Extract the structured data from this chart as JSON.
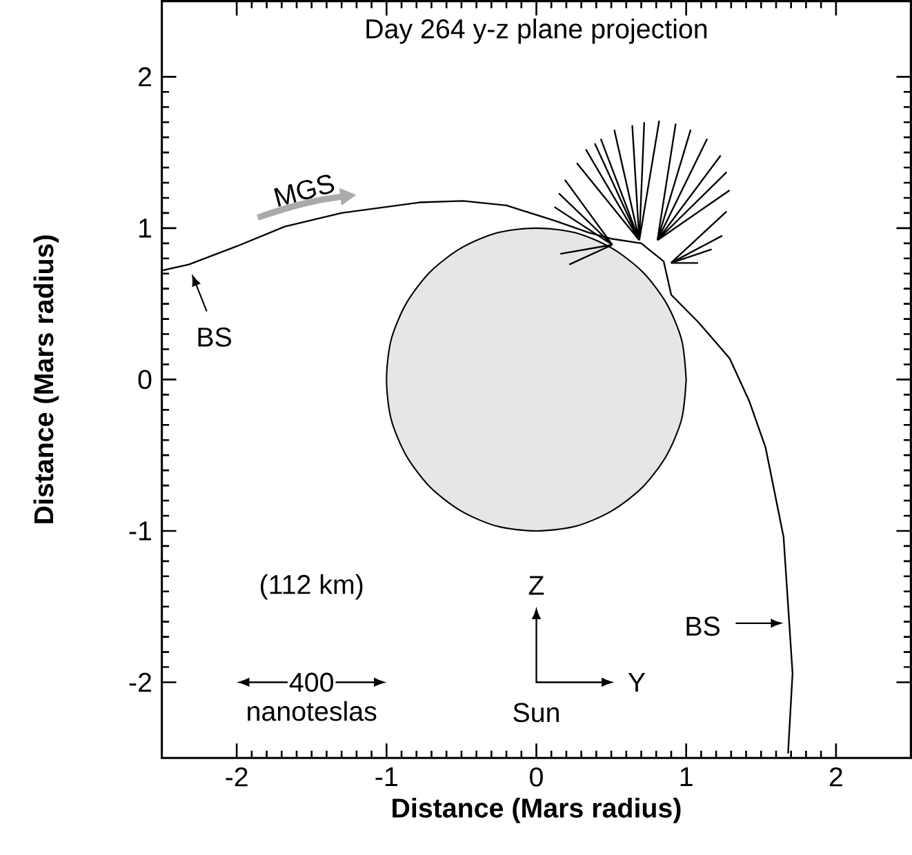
{
  "chart_data": {
    "type": "line",
    "title": "Day 264 y-z plane projection",
    "xlabel": "Distance (Mars radius)",
    "ylabel": "Distance (Mars radius)",
    "xlim": [
      -2.5,
      2.5
    ],
    "ylim": [
      -2.5,
      2.5
    ],
    "xticks": [
      -2,
      -1,
      0,
      1,
      2
    ],
    "yticks": [
      -2,
      -1,
      0,
      1,
      2
    ],
    "series": [
      {
        "type": "area",
        "color": "#e6e6e6",
        "x": [
          1,
          0.97,
          0.87,
          0.71,
          0.5,
          0.26,
          0,
          -0.26,
          -0.5,
          -0.71,
          -0.87,
          -0.97,
          -1,
          -0.97,
          -0.87,
          -0.71,
          -0.5,
          -0.26,
          0,
          0.26,
          0.5,
          0.71,
          0.87,
          0.97,
          1
        ],
        "values": [
          0,
          0.26,
          0.5,
          0.71,
          0.87,
          0.97,
          1,
          0.97,
          0.87,
          0.71,
          0.5,
          0.26,
          0,
          -0.26,
          -0.5,
          -0.71,
          -0.87,
          -0.97,
          -1,
          -0.97,
          -0.87,
          -0.71,
          -0.5,
          -0.26,
          0
        ]
      },
      {
        "color": "#000000",
        "x": [
          -2.5,
          -2.32,
          -2.0,
          -1.68,
          -1.3,
          -0.78,
          -0.49,
          -0.2,
          0.12,
          0.35,
          0.5,
          0.7,
          0.85,
          0.9,
          1.08,
          1.29,
          1.42,
          1.53,
          1.65,
          1.69,
          1.71,
          1.68
        ],
        "values": [
          0.72,
          0.76,
          0.88,
          1.01,
          1.1,
          1.17,
          1.18,
          1.15,
          1.05,
          0.97,
          0.93,
          0.9,
          0.78,
          0.56,
          0.38,
          0.14,
          -0.14,
          -0.45,
          -1.04,
          -1.64,
          -1.94,
          -2.47
        ]
      },
      {
        "color": "#000000",
        "x": [
          0.507,
          0.12,
          null,
          0.507,
          0.15,
          null,
          0.507,
          0.19,
          null,
          0.687,
          0.27,
          null,
          0.687,
          0.33,
          null,
          0.687,
          0.39,
          null,
          0.687,
          0.43,
          null,
          0.687,
          0.52,
          null,
          0.687,
          0.64,
          null,
          0.687,
          0.72,
          null,
          0.687,
          0.82,
          null,
          0.808,
          0.93,
          null,
          0.808,
          1.03,
          null,
          0.808,
          1.14,
          null,
          0.808,
          1.23,
          null,
          0.808,
          1.27,
          null,
          0.808,
          1.29,
          null,
          0.898,
          1.27,
          null,
          0.898,
          1.24,
          null,
          0.898,
          1.17,
          null,
          0.898,
          1.08,
          null,
          0.507,
          0.16,
          null,
          0.507,
          0.22
        ],
        "values": [
          0.89,
          1.14,
          null,
          0.89,
          1.23,
          null,
          0.89,
          1.32,
          null,
          0.92,
          1.43,
          null,
          0.92,
          1.52,
          null,
          0.92,
          1.56,
          null,
          0.92,
          1.59,
          null,
          0.92,
          1.65,
          null,
          0.92,
          1.68,
          null,
          0.92,
          1.7,
          null,
          0.92,
          1.71,
          null,
          0.92,
          1.69,
          null,
          0.92,
          1.65,
          null,
          0.92,
          1.59,
          null,
          0.92,
          1.48,
          null,
          0.92,
          1.37,
          null,
          0.92,
          1.25,
          null,
          0.77,
          1.11,
          null,
          0.77,
          0.95,
          null,
          0.77,
          0.86,
          null,
          0.77,
          0.77,
          null,
          0.89,
          0.83,
          null,
          0.89,
          0.76
        ]
      }
    ],
    "annotations": [
      "MGS",
      {
        "text": "BS",
        "x": -2.32,
        "y": 0.74
      },
      {
        "text": "BS",
        "x": 1.67,
        "y": -1.61
      },
      "(112 km)",
      "400",
      "nanoteslas",
      "Z",
      "Y",
      "Sun"
    ],
    "grid": false
  }
}
